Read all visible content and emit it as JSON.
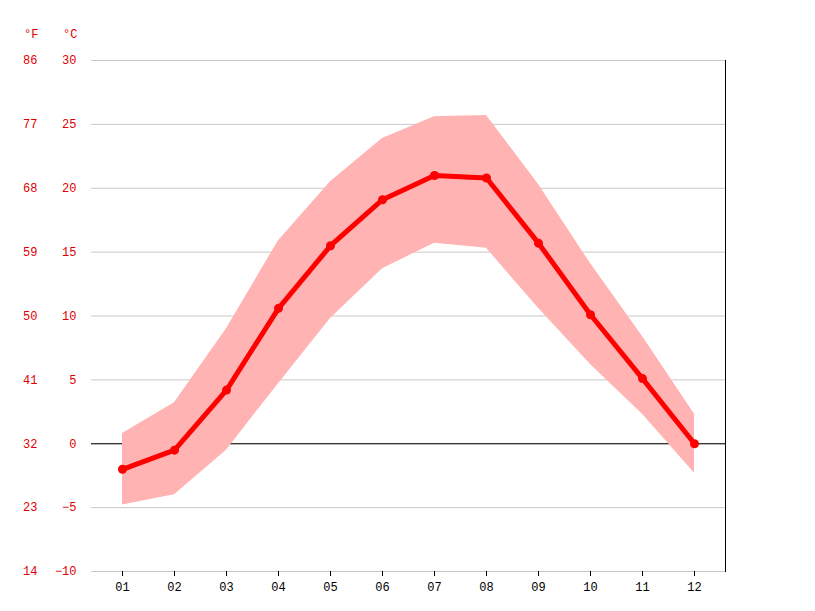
{
  "chart_data": {
    "type": "line",
    "categories": [
      "01",
      "02",
      "03",
      "04",
      "05",
      "06",
      "07",
      "08",
      "09",
      "10",
      "11",
      "12"
    ],
    "series": [
      {
        "color": "#ff0000",
        "marker": "circle",
        "values": [
          -2.0,
          -0.5,
          4.2,
          10.6,
          15.5,
          19.1,
          21.0,
          20.8,
          15.7,
          10.1,
          5.1,
          0.0
        ]
      }
    ],
    "band": {
      "color": "#ffb3b3",
      "low": [
        -4.8,
        -4.0,
        -0.5,
        4.7,
        9.8,
        13.7,
        15.7,
        15.3,
        10.6,
        6.2,
        2.3,
        -2.3
      ],
      "high": [
        0.8,
        3.2,
        9.0,
        15.9,
        20.5,
        23.9,
        25.6,
        25.7,
        20.3,
        14.1,
        8.4,
        2.3
      ]
    },
    "ylabel": "°C",
    "ylim": [
      -10,
      30
    ],
    "yticks": [
      -10,
      -5,
      0,
      5,
      10,
      15,
      20,
      25,
      30
    ],
    "y2label": "°F",
    "y2lim": [
      14,
      86
    ],
    "y2ticks": [
      14,
      23,
      32,
      41,
      50,
      59,
      68,
      77,
      86
    ],
    "grid": true
  }
}
